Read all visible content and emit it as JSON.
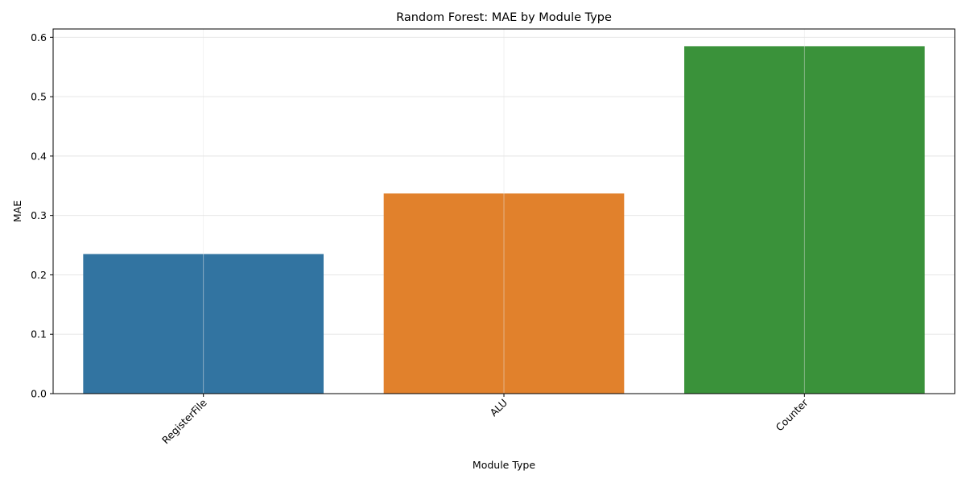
{
  "chart_data": {
    "type": "bar",
    "title": "Random Forest: MAE by Module Type",
    "xlabel": "Module Type",
    "ylabel": "MAE",
    "categories": [
      "RegisterFile",
      "ALU",
      "Counter"
    ],
    "values": [
      0.235,
      0.337,
      0.585
    ],
    "colors": [
      "#3274a1",
      "#e1812c",
      "#3a923a"
    ],
    "ylim": [
      0,
      0.614
    ],
    "yticks": [
      0.0,
      0.1,
      0.2,
      0.3,
      0.4,
      0.5,
      0.6
    ],
    "ytick_labels": [
      "0.0",
      "0.1",
      "0.2",
      "0.3",
      "0.4",
      "0.5",
      "0.6"
    ],
    "xtick_rotation_deg": 45,
    "grid": true,
    "legend": "none"
  }
}
